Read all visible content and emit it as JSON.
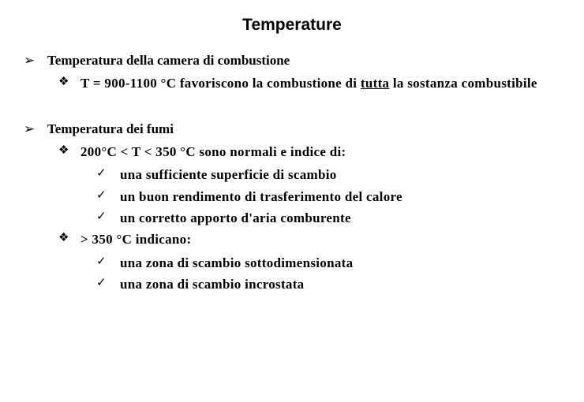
{
  "title": "Temperature",
  "bullets": {
    "arrow": "➢",
    "diamond": "❖",
    "check": "✓"
  },
  "sections": [
    {
      "heading": "Temperatura della camera di combustione",
      "items": [
        {
          "text_pre": "T = 900-1100 °C favoriscono la combustione di ",
          "text_underline": "tutta",
          "text_post": " la sostanza combustibile",
          "subitems": []
        }
      ]
    },
    {
      "heading": "Temperatura dei fumi",
      "items": [
        {
          "text": "200°C < T < 350 °C sono normali e indice di:",
          "subitems": [
            "una sufficiente superficie di scambio",
            "un buon rendimento di trasferimento del calore",
            "un corretto apporto d'aria comburente"
          ]
        },
        {
          "text": "> 350 °C indicano:",
          "subitems": [
            "una zona di scambio sottodimensionata",
            "una zona di scambio incrostata"
          ]
        }
      ]
    }
  ],
  "colors": {
    "background": "#ffffff",
    "text": "#000000"
  },
  "typography": {
    "title_fontsize": 21,
    "body_fontsize": 17,
    "title_family": "Arial",
    "body_family": "Times New Roman"
  }
}
